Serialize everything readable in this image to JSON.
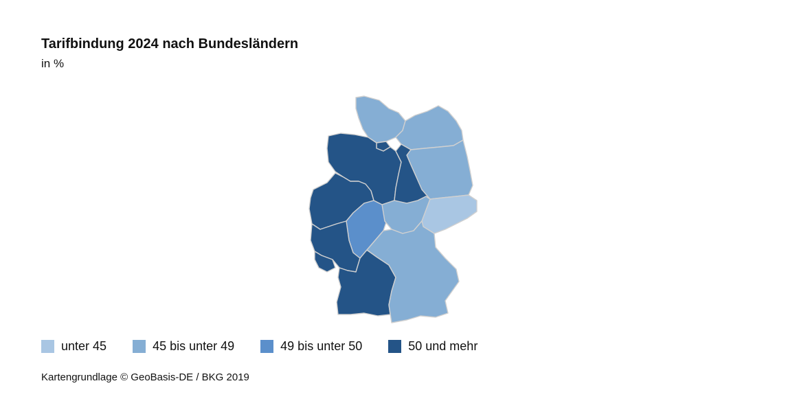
{
  "title": "Tarifbindung 2024 nach Bundesländern",
  "subtitle": "in %",
  "legend": [
    {
      "label": "unter 45",
      "color": "#a9c6e3"
    },
    {
      "label": "45 bis unter 49",
      "color": "#85aed4"
    },
    {
      "label": "49 bis unter 50",
      "color": "#5b8fcb"
    },
    {
      "label": "50 und mehr",
      "color": "#245487"
    }
  ],
  "source": "Kartengrundlage © GeoBasis-DE / BKG 2019",
  "map": {
    "border_color": "#d0d0d0",
    "states": [
      {
        "name": "Schleswig-Holstein",
        "class": "45 bis unter 49"
      },
      {
        "name": "Hamburg",
        "class": "50 und mehr"
      },
      {
        "name": "Mecklenburg-Vorpommern",
        "class": "45 bis unter 49"
      },
      {
        "name": "Bremen",
        "class": "50 und mehr"
      },
      {
        "name": "Niedersachsen",
        "class": "50 und mehr"
      },
      {
        "name": "Berlin",
        "class": "45 bis unter 49"
      },
      {
        "name": "Brandenburg",
        "class": "45 bis unter 49"
      },
      {
        "name": "Sachsen-Anhalt",
        "class": "50 und mehr"
      },
      {
        "name": "Nordrhein-Westfalen",
        "class": "50 und mehr"
      },
      {
        "name": "Hessen",
        "class": "49 bis unter 50"
      },
      {
        "name": "Thüringen",
        "class": "45 bis unter 49"
      },
      {
        "name": "Sachsen",
        "class": "unter 45"
      },
      {
        "name": "Rheinland-Pfalz",
        "class": "50 und mehr"
      },
      {
        "name": "Saarland",
        "class": "50 und mehr"
      },
      {
        "name": "Baden-Württemberg",
        "class": "50 und mehr"
      },
      {
        "name": "Bayern",
        "class": "45 bis unter 49"
      }
    ]
  }
}
